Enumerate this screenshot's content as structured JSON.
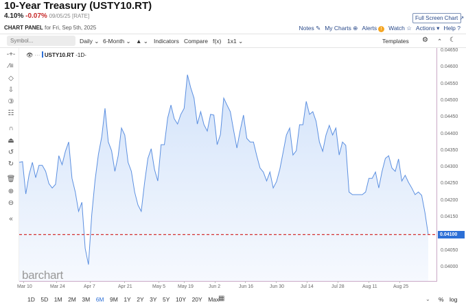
{
  "header": {
    "title": "10-Year Treasury (USTY10.RT)",
    "last": "4.10%",
    "change": "-0.07%",
    "date_tag": "09/05/25 [RATE]",
    "panel_label": "CHART PANEL",
    "panel_date": "for Fri, Sep 5th, 2025",
    "fullscreen": "Full Screen Chart ↗"
  },
  "links": [
    {
      "label": "Notes",
      "icon": "edit-icon",
      "glyph": "✎"
    },
    {
      "label": "My Charts",
      "icon": "plus-circle-icon",
      "glyph": "⊕"
    },
    {
      "label": "Alerts",
      "icon": "alert-icon",
      "glyph": "!"
    },
    {
      "label": "Watch",
      "icon": "star-icon",
      "glyph": "☆"
    },
    {
      "label": "Actions",
      "icon": "caret-down-icon",
      "glyph": "▾"
    },
    {
      "label": "Help",
      "icon": "help-icon",
      "glyph": "?"
    }
  ],
  "toolbar": {
    "symbol_placeholder": "Symbol...",
    "interval": "Daily ⌄",
    "period": "6-Month ⌄",
    "chart_type": "▲ ⌄",
    "indicators": "Indicators",
    "compare": "Compare",
    "fx": "f(x)",
    "layout": "1x1 ⌄",
    "templates": "Templates"
  },
  "legend": {
    "symbol": "USTY10.RT",
    "interval": "-1D-"
  },
  "left_tools": [
    {
      "icon": "crosshair-icon",
      "g": "-+-"
    },
    {
      "icon": "line-tools-icon",
      "g": "⁄≡"
    },
    {
      "icon": "shapes-icon",
      "g": "◇"
    },
    {
      "icon": "arrow-down-icon",
      "g": "⇩"
    },
    {
      "icon": "number-marker-icon",
      "g": "③"
    },
    {
      "icon": "patterns-icon",
      "g": "☷"
    },
    {
      "icon": "magnet-icon",
      "g": "∩"
    },
    {
      "icon": "unlock-icon",
      "g": "⏏"
    },
    {
      "icon": "undo-icon",
      "g": "↺"
    },
    {
      "icon": "redo-icon",
      "g": "↻"
    },
    {
      "icon": "trash-icon",
      "g": "🗑"
    },
    {
      "icon": "zoom-in-icon",
      "g": "⊕"
    },
    {
      "icon": "zoom-out-icon",
      "g": "⊖"
    },
    {
      "icon": "collapse-icon",
      "g": "«"
    }
  ],
  "ranges": [
    "1D",
    "5D",
    "1M",
    "2M",
    "3M",
    "6M",
    "9M",
    "1Y",
    "2Y",
    "3Y",
    "5Y",
    "10Y",
    "20Y",
    "Max"
  ],
  "active_range": "6M",
  "bottom_right": {
    "percent": "%",
    "log": "log"
  },
  "watermark": "barchart",
  "colors": {
    "line": "#5b8fe0",
    "fill": "#dbe8fb",
    "current_line": "#d32f2f",
    "price_tag": "#2c6fd6",
    "change": "#c62828"
  },
  "chart_data": {
    "type": "area",
    "series": [
      {
        "values": [
          0.04317,
          0.04319,
          0.04222,
          0.0428,
          0.04317,
          0.04271,
          0.04308,
          0.04308,
          0.0429,
          0.04253,
          0.0424,
          0.04251,
          0.04337,
          0.0431,
          0.0435,
          0.04378,
          0.04269,
          0.04228,
          0.0417,
          0.04197,
          0.04059,
          0.0401,
          0.0416,
          0.04263,
          0.04341,
          0.04393,
          0.04479,
          0.04378,
          0.04352,
          0.0429,
          0.04337,
          0.0442,
          0.04399,
          0.04317,
          0.0429,
          0.04228,
          0.04189,
          0.0417,
          0.04255,
          0.04329,
          0.04358,
          0.04296,
          0.04261,
          0.0437,
          0.0437,
          0.0445,
          0.04489,
          0.04448,
          0.04432,
          0.04461,
          0.04479,
          0.0458,
          0.04541,
          0.0451,
          0.04432,
          0.04469,
          0.0443,
          0.04411,
          0.04461,
          0.04459,
          0.0437,
          0.04401,
          0.0451,
          0.04489,
          0.04469,
          0.04413,
          0.0436,
          0.04413,
          0.04459,
          0.04389,
          0.04378,
          0.04378,
          0.04337,
          0.043,
          0.04288,
          0.04261,
          0.04288,
          0.0424,
          0.04259,
          0.04296,
          0.04347,
          0.04399,
          0.0442,
          0.04339,
          0.04352,
          0.0443,
          0.0443,
          0.045,
          0.04461,
          0.04469,
          0.0444,
          0.04378,
          0.0435,
          0.04399,
          0.04428,
          0.04399,
          0.0442,
          0.04339,
          0.04378,
          0.04368,
          0.04228,
          0.0422,
          0.0422,
          0.0422,
          0.0422,
          0.04228,
          0.04269,
          0.04269,
          0.04288,
          0.0424,
          0.0429,
          0.04329,
          0.04337,
          0.043,
          0.0429,
          0.04327,
          0.04261,
          0.04278,
          0.04257,
          0.0424,
          0.0422,
          0.04228,
          0.04218,
          0.04166,
          0.041
        ]
      }
    ],
    "x_ticks": [
      "Mar 10",
      "Mar 24",
      "Apr 7",
      "Apr 21",
      "May 5",
      "May 19",
      "Jun 2",
      "Jun 16",
      "Jun 30",
      "Jul 14",
      "Jul 28",
      "Aug 11",
      "Aug 25"
    ],
    "y_ticks": [
      "0.04650",
      "0.04600",
      "0.04550",
      "0.04500",
      "0.04450",
      "0.04400",
      "0.04350",
      "0.04300",
      "0.04250",
      "0.04200",
      "0.04150",
      "0.04100",
      "0.04050",
      "0.04000"
    ],
    "ylim": [
      0.04,
      0.0465
    ],
    "current_value": "0.04100",
    "reference_line": 0.041,
    "grid": false
  }
}
